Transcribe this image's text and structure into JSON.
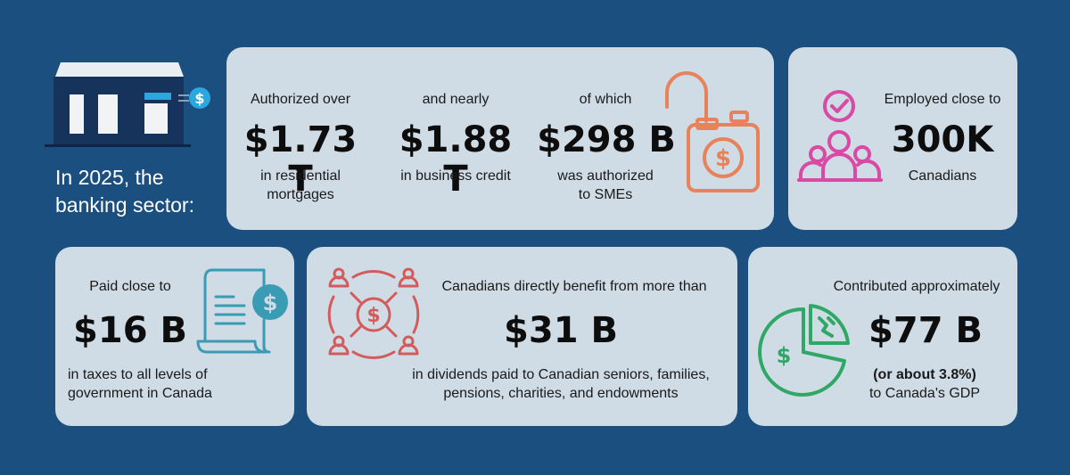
{
  "intro": {
    "line1": "In 2025, the",
    "line2": "banking sector:"
  },
  "mortgages": {
    "pre": "Authorized over",
    "value": "$1.73 T",
    "post1": "in residential",
    "post2": "mortgages"
  },
  "business_credit": {
    "pre": "and nearly",
    "value": "$1.88 T",
    "post1": "in business credit"
  },
  "smes": {
    "pre": "of which",
    "value": "$298 B",
    "post1": "was authorized",
    "post2": "to SMEs"
  },
  "employment": {
    "pre": "Employed close to",
    "value": "300K",
    "post1": "Canadians"
  },
  "taxes": {
    "pre": "Paid close to",
    "value": "$16 B",
    "post1": "in taxes to all levels of",
    "post2": "government in Canada"
  },
  "dividends": {
    "pre": "Canadians directly benefit from more than",
    "value": "$31 B",
    "post1": "in dividends paid to Canadian seniors, families,",
    "post2": "pensions, charities, and endowments"
  },
  "gdp": {
    "pre": "Contributed approximately",
    "value": "$77 B",
    "post1": "(or about  3.8%)",
    "post2": "to Canada's GDP"
  },
  "icons": {
    "bank": "bank-building-icon",
    "lock": "padlock-dollar-icon",
    "people": "employees-check-icon",
    "document": "tax-document-dollar-icon",
    "network": "dividend-network-icon",
    "pie": "pie-chart-dollar-icon"
  },
  "colors": {
    "background": "#1b4f7f",
    "card": "#cfdbe5",
    "lock": "#e8825a",
    "people": "#d84aa3",
    "document": "#3a9bb5",
    "network": "#d35b5b",
    "pie": "#2fa866",
    "bank_accent": "#2ba7e0"
  }
}
